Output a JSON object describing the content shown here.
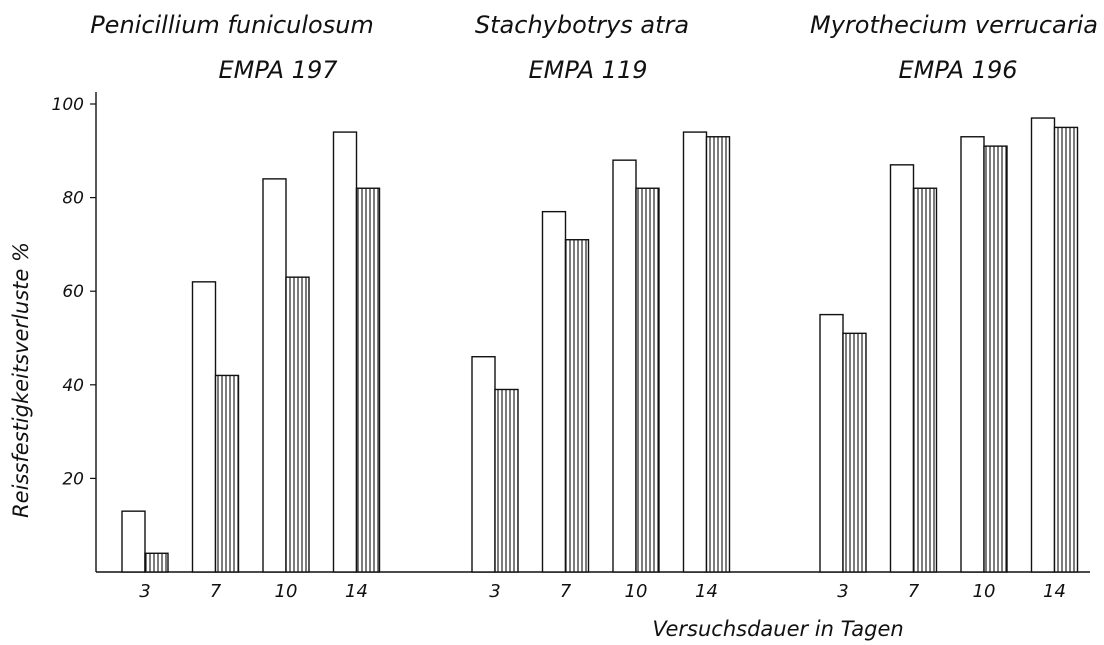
{
  "chart_data": {
    "type": "bar",
    "ylabel": "Reissfestigkeitsverluste %",
    "xlabel": "Versuchsdauer in Tagen",
    "ylim": [
      0,
      100
    ],
    "yticks": [
      "20",
      "40",
      "60",
      "80",
      "100"
    ],
    "grid": false,
    "legend": "none",
    "colors": {
      "ink": "#111111",
      "background": "#ffffff"
    },
    "series_styles": [
      "open",
      "vertical-hatch"
    ],
    "groups": [
      {
        "title_line1": "Penicillium funiculosum",
        "title_line2": "EMPA 197",
        "categories": [
          "3",
          "7",
          "10",
          "14"
        ],
        "series": [
          {
            "values": [
              13,
              62,
              84,
              94
            ]
          },
          {
            "values": [
              4,
              42,
              63,
              82
            ]
          }
        ]
      },
      {
        "title_line1": "Stachybotrys atra",
        "title_line2": "EMPA 119",
        "categories": [
          "3",
          "7",
          "10",
          "14"
        ],
        "series": [
          {
            "values": [
              46,
              77,
              88,
              94
            ]
          },
          {
            "values": [
              39,
              71,
              82,
              93
            ]
          }
        ]
      },
      {
        "title_line1": "Myrothecium verrucaria",
        "title_line2": "EMPA 196",
        "categories": [
          "3",
          "7",
          "10",
          "14"
        ],
        "series": [
          {
            "values": [
              55,
              87,
              93,
              97
            ]
          },
          {
            "values": [
              51,
              82,
              91,
              95
            ]
          }
        ]
      }
    ]
  }
}
